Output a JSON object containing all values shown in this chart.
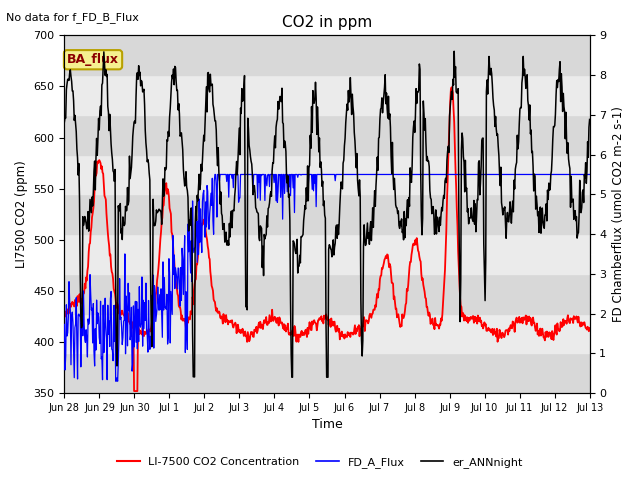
{
  "title": "CO2 in ppm",
  "top_left_text": "No data for f_FD_B_Flux",
  "box_label": "BA_flux",
  "ylabel_left": "LI7500 CO2 (ppm)",
  "ylabel_right": "FD Chamberflux (umol CO2 m-2 s-1)",
  "xlabel": "Time",
  "ylim_left": [
    350,
    700
  ],
  "ylim_right": [
    0.0,
    9.0
  ],
  "yticks_left": [
    350,
    400,
    450,
    500,
    550,
    600,
    650,
    700
  ],
  "yticks_right": [
    0.0,
    1.0,
    2.0,
    3.0,
    4.0,
    5.0,
    6.0,
    7.0,
    8.0,
    9.0
  ],
  "band_color": "#e0e0e0",
  "background_gray": "#ebebeb",
  "legend_labels": [
    "LI-7500 CO2 Concentration",
    "FD_A_Flux",
    "er_ANNnight"
  ],
  "legend_colors": [
    "red",
    "blue",
    "black"
  ],
  "xtick_labels": [
    "Jun 28",
    "Jun 29",
    "Jun 30",
    "Jul 1",
    "Jul 2",
    "Jul 3",
    "Jul 4",
    "Jul 5",
    "Jul 6",
    "Jul 7",
    "Jul 8",
    "Jul 9",
    "Jul 10",
    "Jul 11",
    "Jul 12",
    "Jul 13"
  ],
  "n_points": 800
}
